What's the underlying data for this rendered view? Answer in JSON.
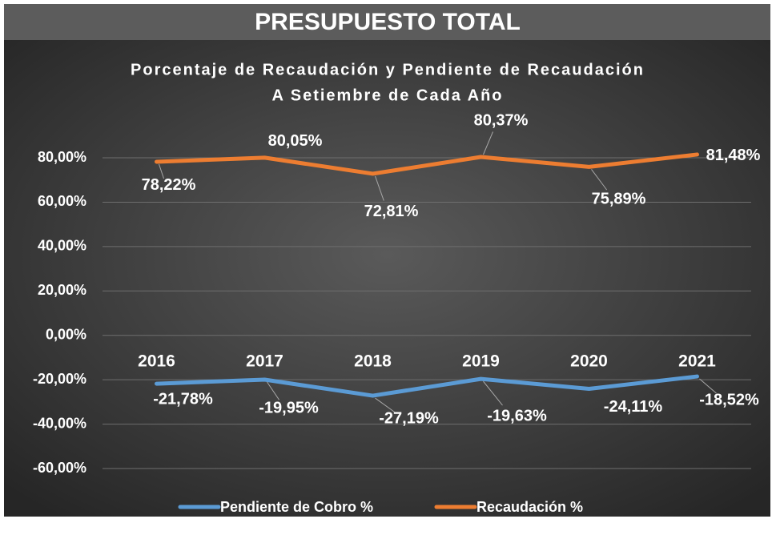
{
  "header": {
    "title": "PRESUPUESTO TOTAL"
  },
  "chart_data": {
    "type": "line",
    "title": "Porcentaje de Recaudación y Pendiente de Recaudación",
    "subtitle": "A Setiembre de Cada Año",
    "categories": [
      "2016",
      "2017",
      "2018",
      "2019",
      "2020",
      "2021"
    ],
    "series": [
      {
        "name": "Pendiente de Cobro %",
        "color": "#5b9bd5",
        "values": [
          -21.78,
          -19.95,
          -27.19,
          -19.63,
          -24.11,
          -18.52
        ],
        "value_labels": [
          "-21,78%",
          "-19,95%",
          "-27,19%",
          "-19,63%",
          "-24,11%",
          "-18,52%"
        ]
      },
      {
        "name": "Recaudación %",
        "color": "#ed7d31",
        "values": [
          78.22,
          80.05,
          72.81,
          80.37,
          75.89,
          81.48
        ],
        "value_labels": [
          "78,22%",
          "80,05%",
          "72,81%",
          "80,37%",
          "75,89%",
          "81,48%"
        ]
      }
    ],
    "ylim": [
      -60,
      100
    ],
    "yticks": [
      {
        "value": -60,
        "label": "-60,00%"
      },
      {
        "value": -40,
        "label": "-40,00%"
      },
      {
        "value": -20,
        "label": "-20,00%"
      },
      {
        "value": 0,
        "label": "0,00%"
      },
      {
        "value": 20,
        "label": "20,00%"
      },
      {
        "value": 40,
        "label": "40,00%"
      },
      {
        "value": 60,
        "label": "60,00%"
      },
      {
        "value": 80,
        "label": "80,00%"
      }
    ],
    "grid": true,
    "legend": "bottom"
  }
}
